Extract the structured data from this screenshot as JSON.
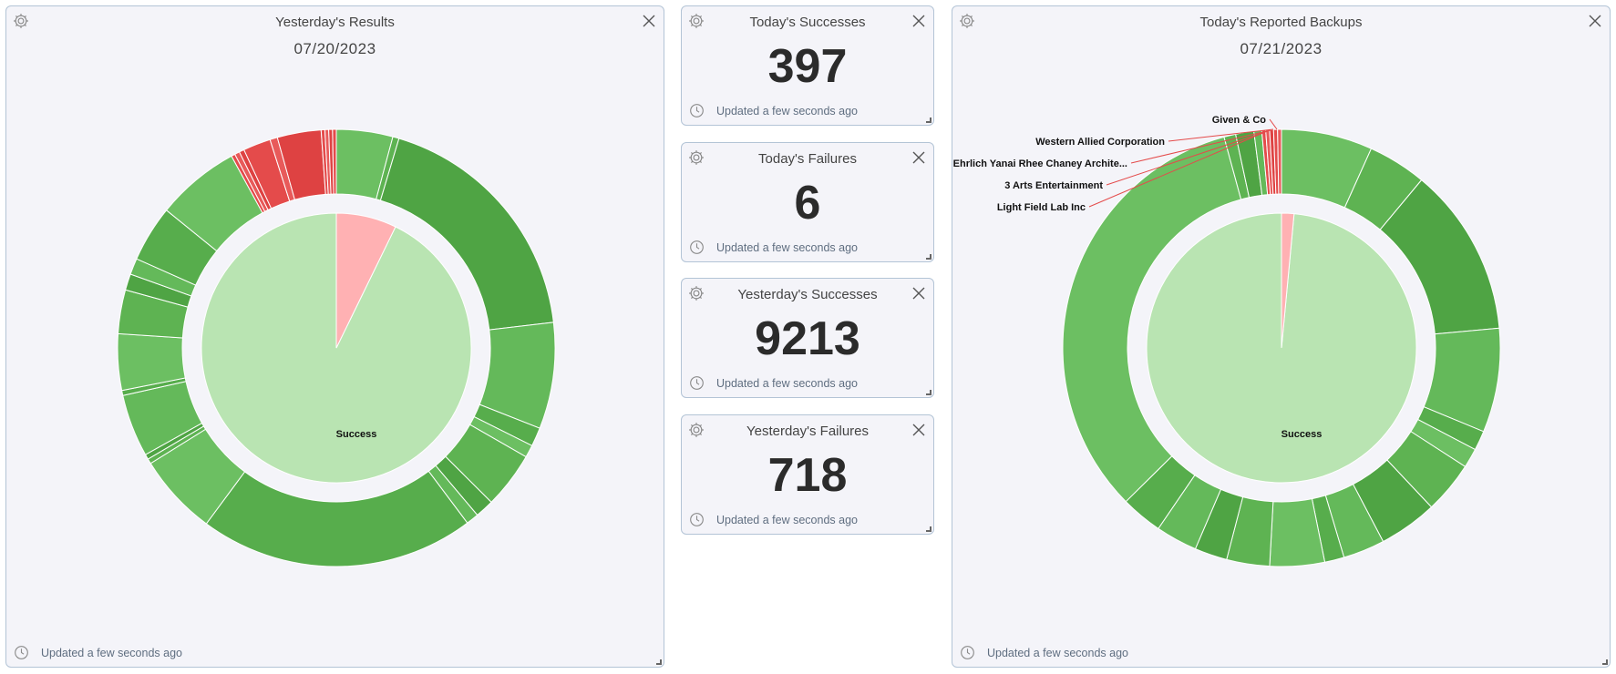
{
  "colors": {
    "success_light": "#b9e4b2",
    "failure_light": "#ffb1b3",
    "green_outer": "#5eb352",
    "red_outer": "#e44b4b"
  },
  "yesterday_results": {
    "title": "Yesterday's Results",
    "date": "07/20/2023",
    "footer": "Updated a few seconds ago",
    "chart_data": {
      "type": "pie",
      "title": "Yesterday's Results",
      "inner": [
        {
          "name": "Success",
          "value": 9213
        },
        {
          "name": "Failure",
          "value": 718
        }
      ],
      "inner_label": "Success",
      "outer": [
        {
          "value": 4.5,
          "status": "success"
        },
        {
          "value": 0.5,
          "status": "success"
        },
        {
          "value": 20,
          "status": "success"
        },
        {
          "value": 8.5,
          "status": "success"
        },
        {
          "value": 1.5,
          "status": "success"
        },
        {
          "value": 1,
          "status": "success"
        },
        {
          "value": 4.5,
          "status": "success"
        },
        {
          "value": 1.5,
          "status": "success"
        },
        {
          "value": 1,
          "status": "success"
        },
        {
          "value": 22,
          "status": "success"
        },
        {
          "value": 6.5,
          "status": "success"
        },
        {
          "value": 0.4,
          "status": "success"
        },
        {
          "value": 0.4,
          "status": "success"
        },
        {
          "value": 5,
          "status": "success"
        },
        {
          "value": 0.4,
          "status": "success"
        },
        {
          "value": 4.5,
          "status": "success"
        },
        {
          "value": 3.5,
          "status": "success"
        },
        {
          "value": 1.3,
          "status": "success"
        },
        {
          "value": 1.3,
          "status": "success"
        },
        {
          "value": 4.5,
          "status": "success"
        },
        {
          "value": 6.7,
          "status": "success"
        },
        {
          "value": 0.3,
          "status": "failure"
        },
        {
          "value": 0.4,
          "status": "failure"
        },
        {
          "value": 0.4,
          "status": "failure"
        },
        {
          "value": 2.2,
          "status": "failure"
        },
        {
          "value": 0.6,
          "status": "failure"
        },
        {
          "value": 3.5,
          "status": "failure"
        },
        {
          "value": 0.3,
          "status": "failure"
        },
        {
          "value": 0.3,
          "status": "failure"
        },
        {
          "value": 0.3,
          "status": "failure"
        },
        {
          "value": 0.3,
          "status": "failure"
        }
      ]
    }
  },
  "stats": [
    {
      "title": "Today's Successes",
      "value": "397",
      "footer": "Updated a few seconds ago"
    },
    {
      "title": "Today's Failures",
      "value": "6",
      "footer": "Updated a few seconds ago"
    },
    {
      "title": "Yesterday's Successes",
      "value": "9213",
      "footer": "Updated a few seconds ago"
    },
    {
      "title": "Yesterday's Failures",
      "value": "718",
      "footer": "Updated a few seconds ago"
    }
  ],
  "today_backups": {
    "title": "Today's Reported Backups",
    "date": "07/21/2023",
    "footer": "Updated a few seconds ago",
    "chart_data": {
      "type": "pie",
      "title": "Today's Reported Backups",
      "inner": [
        {
          "name": "Success",
          "value": 397
        },
        {
          "name": "Failure",
          "value": 6
        }
      ],
      "inner_label": "Success",
      "outer": [
        {
          "value": 7,
          "status": "success"
        },
        {
          "value": 4.5,
          "status": "success"
        },
        {
          "value": 13,
          "status": "success"
        },
        {
          "value": 8,
          "status": "success"
        },
        {
          "value": 1.5,
          "status": "success"
        },
        {
          "value": 1.5,
          "status": "success"
        },
        {
          "value": 4,
          "status": "success"
        },
        {
          "value": 4.5,
          "status": "success"
        },
        {
          "value": 3.2,
          "status": "success"
        },
        {
          "value": 1.5,
          "status": "success"
        },
        {
          "value": 4.2,
          "status": "success"
        },
        {
          "value": 3.3,
          "status": "success"
        },
        {
          "value": 2.5,
          "status": "success"
        },
        {
          "value": 3.2,
          "status": "success"
        },
        {
          "value": 3.2,
          "status": "success"
        },
        {
          "value": 34.5,
          "status": "success"
        },
        {
          "value": 0.9,
          "status": "success"
        },
        {
          "value": 1.4,
          "status": "success"
        },
        {
          "value": 0.6,
          "status": "success"
        },
        {
          "value": 0.3,
          "status": "failure"
        },
        {
          "value": 0.3,
          "status": "failure"
        },
        {
          "value": 0.3,
          "status": "failure"
        },
        {
          "value": 0.3,
          "status": "failure"
        },
        {
          "value": 0.3,
          "status": "failure"
        }
      ],
      "callouts": [
        "Given & Co",
        "Western Allied Corporation",
        "Ehrlich Yanai Rhee Chaney Archite...",
        "3 Arts Entertainment",
        "Light Field Lab Inc"
      ]
    }
  }
}
